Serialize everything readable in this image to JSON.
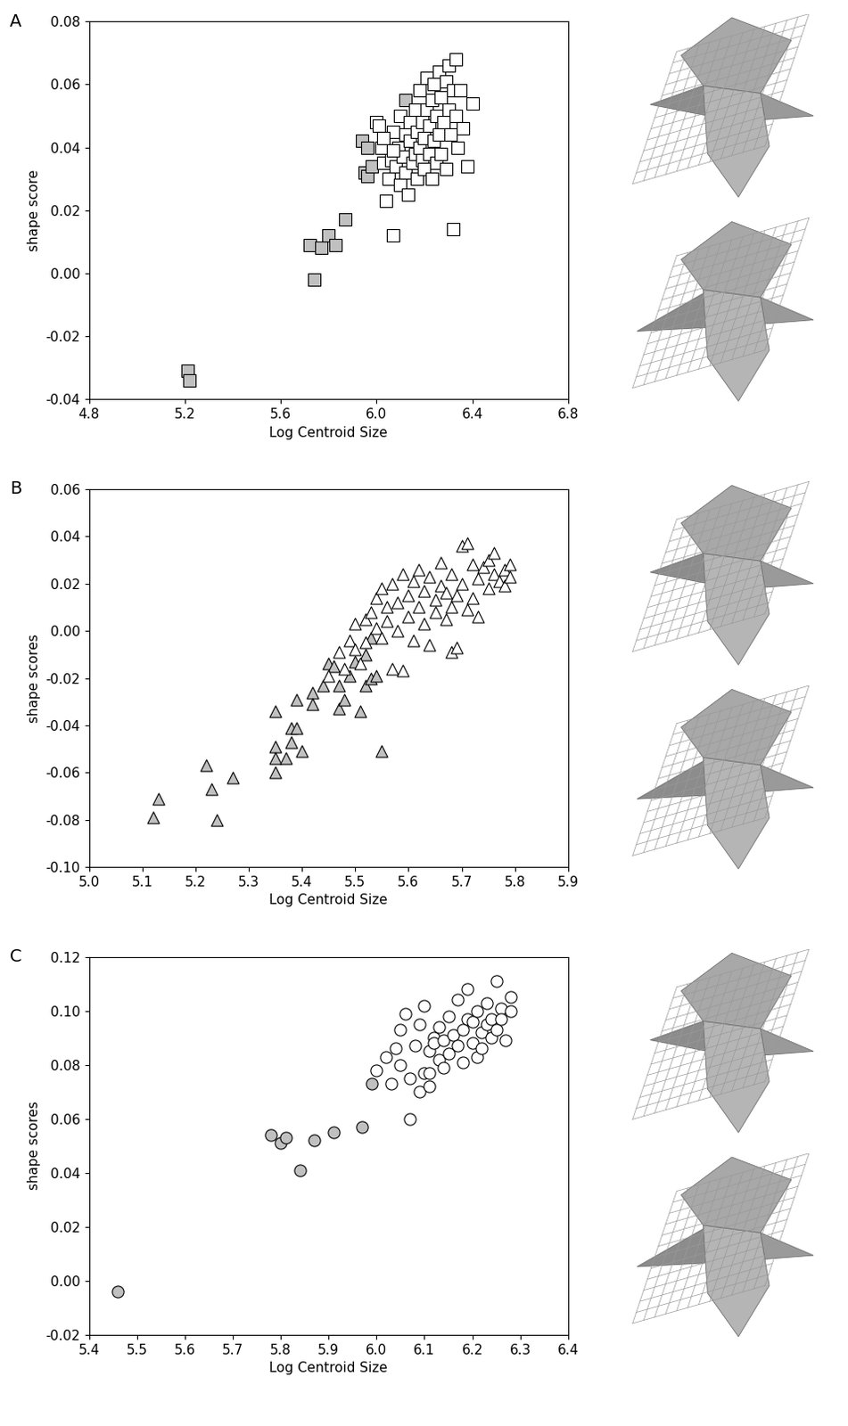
{
  "chart_data": [
    {
      "type": "scatter",
      "title": "A",
      "x_label": "Log Centroid Size",
      "y_label": "shape score",
      "xlim": [
        4.8,
        6.8
      ],
      "xticks": [
        4.8,
        5.2,
        5.6,
        6.0,
        6.4,
        6.8
      ],
      "ylim": [
        -0.04,
        0.08
      ],
      "yticks": [
        -0.04,
        -0.02,
        {
          "value": 0,
          "label": "0.00"
        },
        0.02,
        0.04,
        0.06,
        0.08
      ],
      "series": [
        {
          "color": "#c0c0c0",
          "marker": "s",
          "x": [
            5.21,
            5.22,
            5.72,
            5.74,
            5.77,
            5.8,
            5.83,
            5.87,
            5.94,
            5.95,
            5.96,
            5.96,
            5.98,
            6.12
          ],
          "values": [
            -0.031,
            -0.034,
            0.009,
            -0.002,
            0.008,
            0.012,
            0.009,
            0.017,
            0.042,
            0.032,
            0.031,
            0.04,
            0.034,
            0.055
          ]
        },
        {
          "color": "#ffffff",
          "marker": "s",
          "x": [
            6.0,
            6.01,
            6.02,
            6.03,
            6.04,
            6.05,
            6.06,
            6.07,
            6.07,
            6.08,
            6.09,
            6.1,
            6.1,
            6.11,
            6.12,
            6.12,
            6.13,
            6.14,
            6.14,
            6.15,
            6.16,
            6.16,
            6.17,
            6.17,
            6.18,
            6.18,
            6.19,
            6.19,
            6.2,
            6.2,
            6.21,
            6.21,
            6.22,
            6.22,
            6.23,
            6.23,
            6.24,
            6.24,
            6.25,
            6.25,
            6.26,
            6.26,
            6.27,
            6.27,
            6.28,
            6.29,
            6.29,
            6.3,
            6.3,
            6.31,
            6.32,
            6.32,
            6.33,
            6.33,
            6.34,
            6.35,
            6.36,
            6.38,
            6.4,
            6.07,
            6.03
          ],
          "values": [
            0.048,
            0.047,
            0.04,
            0.035,
            0.023,
            0.03,
            0.036,
            0.012,
            0.045,
            0.034,
            0.04,
            0.028,
            0.05,
            0.037,
            0.032,
            0.044,
            0.025,
            0.042,
            0.048,
            0.035,
            0.038,
            0.052,
            0.03,
            0.045,
            0.04,
            0.058,
            0.036,
            0.048,
            0.033,
            0.043,
            0.052,
            0.062,
            0.038,
            0.047,
            0.03,
            0.055,
            0.042,
            0.06,
            0.035,
            0.05,
            0.044,
            0.064,
            0.038,
            0.056,
            0.048,
            0.033,
            0.061,
            0.052,
            0.066,
            0.044,
            0.014,
            0.058,
            0.068,
            0.05,
            0.04,
            0.058,
            0.046,
            0.034,
            0.054,
            0.039,
            0.043
          ]
        }
      ]
    },
    {
      "type": "scatter",
      "title": "B",
      "x_label": "Log Centroid Size",
      "y_label": "shape scores",
      "xlim": [
        5.0,
        5.9
      ],
      "xticks": [
        5.0,
        5.1,
        5.2,
        5.3,
        5.4,
        5.5,
        5.6,
        5.7,
        5.8,
        5.9
      ],
      "ylim": [
        -0.1,
        0.06
      ],
      "yticks": [
        {
          "value": -0.1,
          "label": "-0.10"
        },
        -0.08,
        -0.06,
        -0.04,
        -0.02,
        {
          "value": 0,
          "label": "0.00"
        },
        0.02,
        0.04,
        0.06
      ],
      "series": [
        {
          "color": "#c0c0c0",
          "marker": "^",
          "x": [
            5.12,
            5.13,
            5.22,
            5.23,
            5.24,
            5.27,
            5.35,
            5.35,
            5.35,
            5.35,
            5.37,
            5.38,
            5.38,
            5.39,
            5.39,
            5.4,
            5.42,
            5.42,
            5.44,
            5.45,
            5.46,
            5.47,
            5.47,
            5.48,
            5.49,
            5.5,
            5.51,
            5.52,
            5.52,
            5.53,
            5.53,
            5.55,
            5.54
          ],
          "values": [
            -0.079,
            -0.071,
            -0.057,
            -0.067,
            -0.08,
            -0.062,
            -0.034,
            -0.049,
            -0.054,
            -0.06,
            -0.054,
            -0.041,
            -0.047,
            -0.041,
            -0.029,
            -0.051,
            -0.026,
            -0.031,
            -0.023,
            -0.014,
            -0.015,
            -0.023,
            -0.033,
            -0.029,
            -0.019,
            -0.013,
            -0.034,
            -0.023,
            -0.01,
            -0.02,
            -0.003,
            -0.051,
            -0.019
          ]
        },
        {
          "color": "#ffffff",
          "marker": "^",
          "x": [
            5.45,
            5.47,
            5.48,
            5.49,
            5.5,
            5.5,
            5.51,
            5.52,
            5.52,
            5.53,
            5.54,
            5.54,
            5.55,
            5.55,
            5.56,
            5.56,
            5.57,
            5.57,
            5.58,
            5.58,
            5.59,
            5.59,
            5.6,
            5.6,
            5.61,
            5.61,
            5.62,
            5.62,
            5.63,
            5.63,
            5.64,
            5.64,
            5.65,
            5.65,
            5.66,
            5.66,
            5.67,
            5.67,
            5.68,
            5.68,
            5.68,
            5.69,
            5.69,
            5.7,
            5.7,
            5.71,
            5.71,
            5.72,
            5.72,
            5.73,
            5.73,
            5.74,
            5.75,
            5.75,
            5.76,
            5.76,
            5.77,
            5.78,
            5.78,
            5.79,
            5.79
          ],
          "values": [
            -0.019,
            -0.009,
            -0.016,
            -0.004,
            -0.008,
            0.003,
            -0.014,
            0.005,
            -0.005,
            0.008,
            0.001,
            0.014,
            -0.003,
            0.018,
            0.004,
            0.01,
            -0.016,
            0.02,
            0.0,
            0.012,
            -0.017,
            0.024,
            0.006,
            0.015,
            -0.004,
            0.021,
            0.01,
            0.026,
            0.003,
            0.017,
            -0.006,
            0.023,
            0.008,
            0.013,
            0.019,
            0.029,
            0.005,
            0.016,
            -0.009,
            0.01,
            0.024,
            -0.007,
            0.015,
            0.036,
            0.02,
            0.037,
            0.009,
            0.028,
            0.014,
            0.022,
            0.006,
            0.027,
            0.018,
            0.03,
            0.033,
            0.024,
            0.021,
            0.026,
            0.019,
            0.028,
            0.023
          ]
        }
      ]
    },
    {
      "type": "scatter",
      "title": "C",
      "x_label": "Log Centroid Size",
      "y_label": "shape scores",
      "xlim": [
        5.4,
        6.4
      ],
      "xticks": [
        5.4,
        5.5,
        5.6,
        5.7,
        5.8,
        5.9,
        6.0,
        6.1,
        6.2,
        6.3,
        6.4
      ],
      "ylim": [
        -0.02,
        0.12
      ],
      "yticks": [
        -0.02,
        {
          "value": 0,
          "label": "0.00"
        },
        0.02,
        0.04,
        0.06,
        0.08,
        {
          "value": 0.1,
          "label": "0.10"
        },
        0.12
      ],
      "series": [
        {
          "color": "#c0c0c0",
          "marker": "o",
          "x": [
            5.46,
            5.78,
            5.8,
            5.81,
            5.84,
            5.87,
            5.91,
            5.97,
            5.99
          ],
          "values": [
            -0.004,
            0.054,
            0.051,
            0.053,
            0.041,
            0.052,
            0.055,
            0.057,
            0.073
          ]
        },
        {
          "color": "#ffffff",
          "marker": "o",
          "x": [
            6.0,
            6.02,
            6.03,
            6.04,
            6.05,
            6.05,
            6.06,
            6.07,
            6.07,
            6.08,
            6.09,
            6.09,
            6.1,
            6.1,
            6.11,
            6.11,
            6.12,
            6.12,
            6.13,
            6.13,
            6.14,
            6.15,
            6.15,
            6.16,
            6.17,
            6.17,
            6.18,
            6.18,
            6.19,
            6.19,
            6.2,
            6.2,
            6.21,
            6.21,
            6.22,
            6.22,
            6.23,
            6.23,
            6.24,
            6.24,
            6.25,
            6.25,
            6.26,
            6.26,
            6.27,
            6.28,
            6.28,
            6.14,
            6.11
          ],
          "values": [
            0.078,
            0.083,
            0.073,
            0.086,
            0.08,
            0.093,
            0.099,
            0.06,
            0.075,
            0.087,
            0.07,
            0.095,
            0.077,
            0.102,
            0.085,
            0.072,
            0.09,
            0.088,
            0.094,
            0.082,
            0.089,
            0.098,
            0.084,
            0.091,
            0.087,
            0.104,
            0.093,
            0.081,
            0.097,
            0.108,
            0.088,
            0.096,
            0.083,
            0.1,
            0.092,
            0.086,
            0.095,
            0.103,
            0.09,
            0.097,
            0.093,
            0.111,
            0.101,
            0.097,
            0.089,
            0.1,
            0.105,
            0.079,
            0.077
          ]
        }
      ]
    }
  ]
}
